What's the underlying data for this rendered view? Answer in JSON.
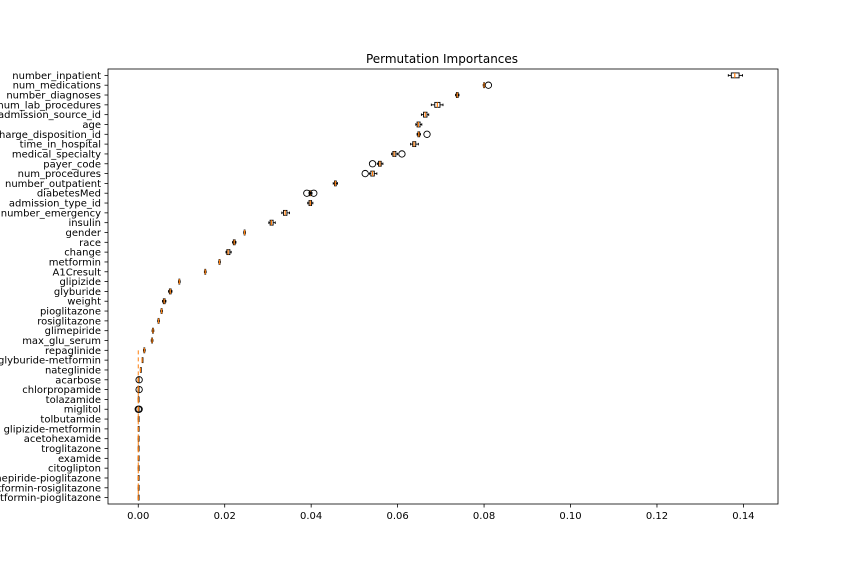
{
  "chart_data": {
    "type": "boxplot",
    "orientation": "horizontal",
    "title": "Permutation Importances",
    "xlabel": "",
    "ylabel": "",
    "xlim": [
      -0.007,
      0.148
    ],
    "xticks": [
      0.0,
      0.02,
      0.04,
      0.06,
      0.08,
      0.1,
      0.12,
      0.14
    ],
    "xtick_labels": [
      "0.00",
      "0.02",
      "0.04",
      "0.06",
      "0.08",
      "0.10",
      "0.12",
      "0.14"
    ],
    "colors": {
      "box": "#000000",
      "median": "#ff7f0e",
      "flier": "#000000"
    },
    "categories": [
      "number_inpatient",
      "num_medications",
      "number_diagnoses",
      "num_lab_procedures",
      "admission_source_id",
      "age",
      "discharge_disposition_id",
      "time_in_hospital",
      "medical_specialty",
      "payer_code",
      "num_procedures",
      "number_outpatient",
      "diabetesMed",
      "admission_type_id",
      "number_emergency",
      "insulin",
      "gender",
      "race",
      "change",
      "metformin",
      "A1Cresult",
      "glipizide",
      "glyburide",
      "weight",
      "pioglitazone",
      "rosiglitazone",
      "glimepiride",
      "max_glu_serum",
      "repaglinide",
      "glyburide-metformin",
      "nateglinide",
      "acarbose",
      "chlorpropamide",
      "tolazamide",
      "miglitol",
      "tolbutamide",
      "glipizide-metformin",
      "acetohexamide",
      "troglitazone",
      "examide",
      "citoglipton",
      "glimepiride-pioglitazone",
      "metformin-rosiglitazone",
      "metformin-pioglitazone"
    ],
    "boxes": [
      {
        "whislo": 0.1365,
        "q1": 0.1372,
        "med": 0.138,
        "q3": 0.139,
        "whishi": 0.1398,
        "fliers": []
      },
      {
        "whislo": 0.0798,
        "q1": 0.0799,
        "med": 0.08,
        "q3": 0.0801,
        "whishi": 0.0802,
        "fliers": [
          0.081
        ]
      },
      {
        "whislo": 0.0734,
        "q1": 0.0736,
        "med": 0.0738,
        "q3": 0.074,
        "whishi": 0.0742,
        "fliers": []
      },
      {
        "whislo": 0.0678,
        "q1": 0.0686,
        "med": 0.0692,
        "q3": 0.0698,
        "whishi": 0.0705,
        "fliers": []
      },
      {
        "whislo": 0.0655,
        "q1": 0.066,
        "med": 0.0664,
        "q3": 0.0668,
        "whishi": 0.0672,
        "fliers": []
      },
      {
        "whislo": 0.0642,
        "q1": 0.0645,
        "med": 0.0648,
        "q3": 0.0652,
        "whishi": 0.0656,
        "fliers": []
      },
      {
        "whislo": 0.0645,
        "q1": 0.0647,
        "med": 0.0649,
        "q3": 0.0651,
        "whishi": 0.0653,
        "fliers": [
          0.0668
        ]
      },
      {
        "whislo": 0.063,
        "q1": 0.0635,
        "med": 0.0638,
        "q3": 0.0642,
        "whishi": 0.0648,
        "fliers": []
      },
      {
        "whislo": 0.0586,
        "q1": 0.0589,
        "med": 0.0592,
        "q3": 0.0596,
        "whishi": 0.06,
        "fliers": [
          0.061
        ]
      },
      {
        "whislo": 0.0553,
        "q1": 0.0556,
        "med": 0.0559,
        "q3": 0.0562,
        "whishi": 0.0566,
        "fliers": [
          0.0542
        ]
      },
      {
        "whislo": 0.0535,
        "q1": 0.0538,
        "med": 0.0542,
        "q3": 0.0546,
        "whishi": 0.0552,
        "fliers": [
          0.0525
        ]
      },
      {
        "whislo": 0.0451,
        "q1": 0.0454,
        "med": 0.0456,
        "q3": 0.0458,
        "whishi": 0.0461,
        "fliers": []
      },
      {
        "whislo": 0.0395,
        "q1": 0.0396,
        "med": 0.0398,
        "q3": 0.04,
        "whishi": 0.0402,
        "fliers": [
          0.039,
          0.0406
        ]
      },
      {
        "whislo": 0.0392,
        "q1": 0.0395,
        "med": 0.0398,
        "q3": 0.0401,
        "whishi": 0.0404,
        "fliers": []
      },
      {
        "whislo": 0.0332,
        "q1": 0.0336,
        "med": 0.034,
        "q3": 0.0344,
        "whishi": 0.035,
        "fliers": []
      },
      {
        "whislo": 0.0302,
        "q1": 0.0305,
        "med": 0.0308,
        "q3": 0.0312,
        "whishi": 0.0317,
        "fliers": []
      },
      {
        "whislo": 0.0244,
        "q1": 0.0245,
        "med": 0.0246,
        "q3": 0.0247,
        "whishi": 0.0248,
        "fliers": []
      },
      {
        "whislo": 0.0218,
        "q1": 0.022,
        "med": 0.0222,
        "q3": 0.0224,
        "whishi": 0.0226,
        "fliers": []
      },
      {
        "whislo": 0.0203,
        "q1": 0.0205,
        "med": 0.0208,
        "q3": 0.0212,
        "whishi": 0.0215,
        "fliers": []
      },
      {
        "whislo": 0.0186,
        "q1": 0.0187,
        "med": 0.0188,
        "q3": 0.0189,
        "whishi": 0.019,
        "fliers": []
      },
      {
        "whislo": 0.0153,
        "q1": 0.0154,
        "med": 0.0155,
        "q3": 0.0156,
        "whishi": 0.0157,
        "fliers": []
      },
      {
        "whislo": 0.0093,
        "q1": 0.0094,
        "med": 0.0095,
        "q3": 0.0096,
        "whishi": 0.0097,
        "fliers": []
      },
      {
        "whislo": 0.007,
        "q1": 0.0072,
        "med": 0.0074,
        "q3": 0.0076,
        "whishi": 0.0078,
        "fliers": []
      },
      {
        "whislo": 0.0056,
        "q1": 0.0058,
        "med": 0.006,
        "q3": 0.0062,
        "whishi": 0.0064,
        "fliers": []
      },
      {
        "whislo": 0.0052,
        "q1": 0.0053,
        "med": 0.0054,
        "q3": 0.0055,
        "whishi": 0.0056,
        "fliers": []
      },
      {
        "whislo": 0.0045,
        "q1": 0.0046,
        "med": 0.0047,
        "q3": 0.0048,
        "whishi": 0.0049,
        "fliers": []
      },
      {
        "whislo": 0.0032,
        "q1": 0.0033,
        "med": 0.0034,
        "q3": 0.0035,
        "whishi": 0.0036,
        "fliers": []
      },
      {
        "whislo": 0.003,
        "q1": 0.0031,
        "med": 0.0032,
        "q3": 0.0033,
        "whishi": 0.0034,
        "fliers": []
      },
      {
        "whislo": 0.0012,
        "q1": 0.0013,
        "med": 0.0014,
        "q3": 0.0015,
        "whishi": 0.0016,
        "fliers": []
      },
      {
        "whislo": 0.0009,
        "q1": 0.0009,
        "med": 0.0009,
        "q3": 0.0009,
        "whishi": 0.0009,
        "fliers": []
      },
      {
        "whislo": 0.0005,
        "q1": 0.0005,
        "med": 0.0005,
        "q3": 0.0005,
        "whishi": 0.0005,
        "fliers": []
      },
      {
        "whislo": 0.0,
        "q1": 0.0,
        "med": 0.0,
        "q3": 0.0,
        "whishi": 0.0,
        "fliers": [
          0.0002
        ]
      },
      {
        "whislo": 0.0,
        "q1": 0.0,
        "med": 0.0,
        "q3": 0.0,
        "whishi": 0.0,
        "fliers": [
          0.0002
        ]
      },
      {
        "whislo": 0.0,
        "q1": 0.0,
        "med": 0.0,
        "q3": 0.0,
        "whishi": 0.0,
        "fliers": []
      },
      {
        "whislo": 0.0,
        "q1": 0.0,
        "med": 0.0,
        "q3": 0.0,
        "whishi": 0.0,
        "fliers": [
          0.0,
          0.0002
        ]
      },
      {
        "whislo": 0.0,
        "q1": 0.0,
        "med": 0.0,
        "q3": 0.0,
        "whishi": 0.0,
        "fliers": []
      },
      {
        "whislo": 0.0,
        "q1": 0.0,
        "med": 0.0,
        "q3": 0.0,
        "whishi": 0.0,
        "fliers": []
      },
      {
        "whislo": 0.0,
        "q1": 0.0,
        "med": 0.0,
        "q3": 0.0,
        "whishi": 0.0,
        "fliers": []
      },
      {
        "whislo": 0.0,
        "q1": 0.0,
        "med": 0.0,
        "q3": 0.0,
        "whishi": 0.0,
        "fliers": []
      },
      {
        "whislo": 0.0,
        "q1": 0.0,
        "med": 0.0,
        "q3": 0.0,
        "whishi": 0.0,
        "fliers": []
      },
      {
        "whislo": 0.0,
        "q1": 0.0,
        "med": 0.0,
        "q3": 0.0,
        "whishi": 0.0,
        "fliers": []
      },
      {
        "whislo": 0.0,
        "q1": 0.0,
        "med": 0.0,
        "q3": 0.0,
        "whishi": 0.0,
        "fliers": []
      },
      {
        "whislo": 0.0,
        "q1": 0.0,
        "med": 0.0,
        "q3": 0.0,
        "whishi": 0.0,
        "fliers": []
      },
      {
        "whislo": 0.0,
        "q1": 0.0,
        "med": 0.0,
        "q3": 0.0,
        "whishi": 0.0,
        "fliers": []
      }
    ]
  }
}
